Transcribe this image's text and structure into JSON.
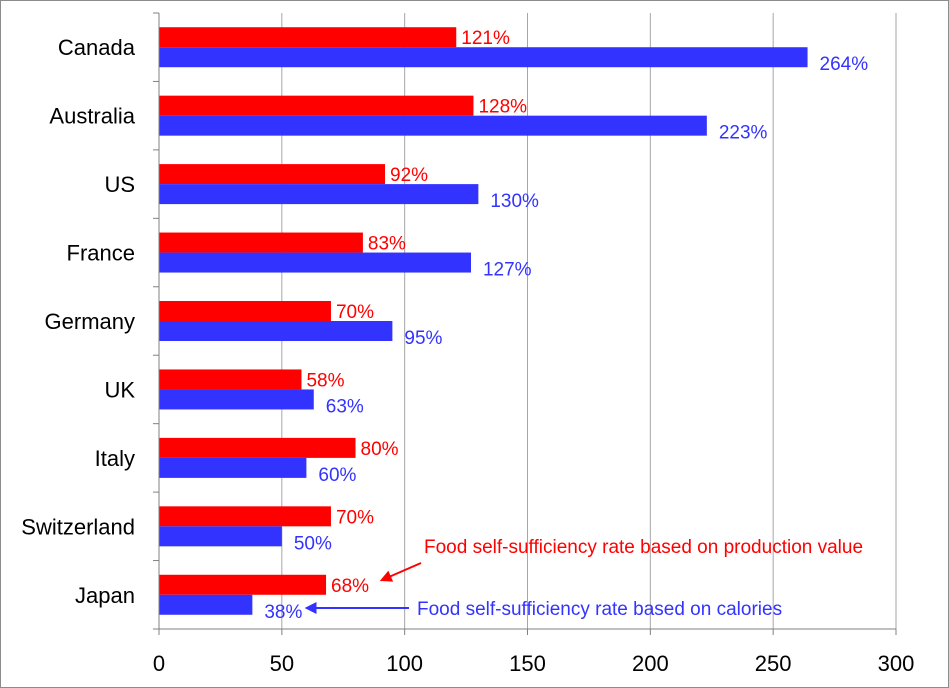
{
  "chart_data": {
    "type": "bar",
    "orientation": "horizontal",
    "categories": [
      "Canada",
      "Australia",
      "US",
      "France",
      "Germany",
      "UK",
      "Italy",
      "Switzerland",
      "Japan"
    ],
    "series": [
      {
        "color": "#ff0000",
        "values": [
          121,
          128,
          92,
          83,
          70,
          58,
          80,
          70,
          68
        ],
        "labels": [
          "121%",
          "128%",
          "92%",
          "83%",
          "70%",
          "58%",
          "80%",
          "70%",
          "68%"
        ]
      },
      {
        "color": "#3333ff",
        "values": [
          264,
          223,
          130,
          127,
          95,
          63,
          60,
          50,
          38
        ],
        "labels": [
          "264%",
          "223%",
          "130%",
          "127%",
          "95%",
          "63%",
          "60%",
          "50%",
          "38%"
        ]
      }
    ],
    "xlim": [
      0,
      300
    ],
    "xticks": [
      0,
      50,
      100,
      150,
      200,
      250,
      300
    ],
    "xtick_labels": [
      "0",
      "50",
      "100",
      "150",
      "200",
      "250",
      "300"
    ],
    "grid": "vertical",
    "annotations": [
      {
        "text": "Food self-sufficiency rate based on production value",
        "color": "#ff0000",
        "points_to": "Japan 68%"
      },
      {
        "text": "Food self-sufficiency rate based on calories",
        "color": "#3333ff",
        "points_to": "Japan 38%"
      }
    ]
  }
}
